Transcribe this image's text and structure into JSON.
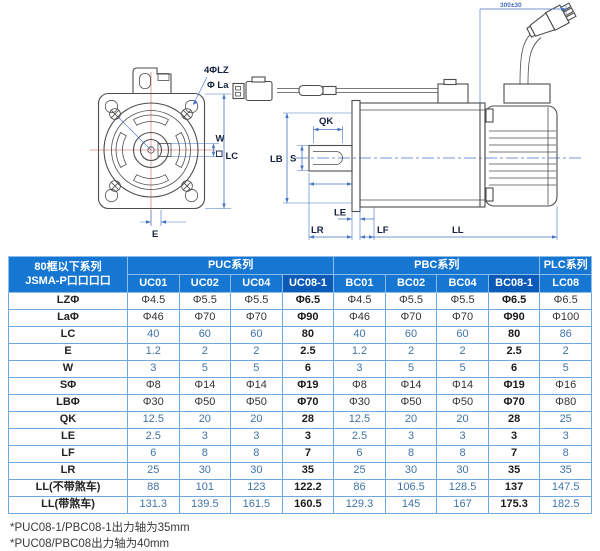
{
  "drawing": {
    "front_view": {
      "label_bolt_holes": "4ΦLZ",
      "label_pilot_dia": "Φ La",
      "label_keyway_width": "W",
      "label_frame_size": "LC",
      "label_keyway_offset": "E"
    },
    "side_view": {
      "label_key_length": "QK",
      "label_pilot_boss_dia": "LB",
      "label_shaft_dia": "S",
      "label_flange_thickness": "LE",
      "label_shaft_length": "LR",
      "label_flange_depth": "LF",
      "label_body_length": "LL",
      "label_cable_length": "300±30"
    }
  },
  "table": {
    "corner_header": {
      "line1": "80框以下系列",
      "line2": "JSMA-P口口口口"
    },
    "series_groups": [
      {
        "label": "PUC系列",
        "span": 4
      },
      {
        "label": "PBC系列",
        "span": 4
      },
      {
        "label": "PLC系列",
        "span": 1
      }
    ],
    "model_columns": [
      "UC01",
      "UC02",
      "UC04",
      "UC08-1",
      "BC01",
      "BC02",
      "BC04",
      "BC08-1",
      "LC08"
    ],
    "highlighted_columns": [
      3,
      7
    ],
    "rows": [
      {
        "label": "LZΦ",
        "values": [
          "Φ4.5",
          "Φ5.5",
          "Φ5.5",
          "Φ6.5",
          "Φ4.5",
          "Φ5.5",
          "Φ5.5",
          "Φ6.5",
          "Φ6.5"
        ]
      },
      {
        "label": "LaΦ",
        "values": [
          "Φ46",
          "Φ70",
          "Φ70",
          "Φ90",
          "Φ46",
          "Φ70",
          "Φ70",
          "Φ90",
          "Φ100"
        ]
      },
      {
        "label": "LC",
        "values": [
          "40",
          "60",
          "60",
          "80",
          "40",
          "60",
          "60",
          "80",
          "86"
        ]
      },
      {
        "label": "E",
        "values": [
          "1.2",
          "2",
          "2",
          "2.5",
          "1.2",
          "2",
          "2",
          "2.5",
          "2"
        ]
      },
      {
        "label": "W",
        "values": [
          "3",
          "5",
          "5",
          "6",
          "3",
          "5",
          "5",
          "6",
          "5"
        ]
      },
      {
        "label": "SΦ",
        "values": [
          "Φ8",
          "Φ14",
          "Φ14",
          "Φ19",
          "Φ8",
          "Φ14",
          "Φ14",
          "Φ19",
          "Φ16"
        ]
      },
      {
        "label": "LBΦ",
        "values": [
          "Φ30",
          "Φ50",
          "Φ50",
          "Φ70",
          "Φ30",
          "Φ50",
          "Φ50",
          "Φ70",
          "Φ80"
        ]
      },
      {
        "label": "QK",
        "values": [
          "12.5",
          "20",
          "20",
          "28",
          "12.5",
          "20",
          "20",
          "28",
          "25"
        ]
      },
      {
        "label": "LE",
        "values": [
          "2.5",
          "3",
          "3",
          "3",
          "2.5",
          "3",
          "3",
          "3",
          "3"
        ]
      },
      {
        "label": "LF",
        "values": [
          "6",
          "8",
          "8",
          "7",
          "6",
          "8",
          "8",
          "7",
          "8"
        ]
      },
      {
        "label": "LR",
        "values": [
          "25",
          "30",
          "30",
          "35",
          "25",
          "30",
          "30",
          "35",
          "35"
        ]
      },
      {
        "label": "LL(不带煞车)",
        "values": [
          "88",
          "101",
          "123",
          "122.2",
          "86",
          "106.5",
          "128.5",
          "137",
          "147.5"
        ]
      },
      {
        "label": "LL(带煞车)",
        "values": [
          "131.3",
          "139.5",
          "161.5",
          "160.5",
          "129.3",
          "145",
          "167",
          "175.3",
          "182.5"
        ]
      }
    ]
  },
  "footnotes": [
    "*PUC08-1/PBC08-1出力轴为35mm",
    "*PUC08/PBC08出力轴为40mm"
  ],
  "colors": {
    "header_blue": "#1677d3",
    "header_highlight_blue": "#0c5ab8",
    "table_border": "#6fa8dc",
    "dimension_line": "#4472c4",
    "center_line_red": "#e08a8a"
  }
}
